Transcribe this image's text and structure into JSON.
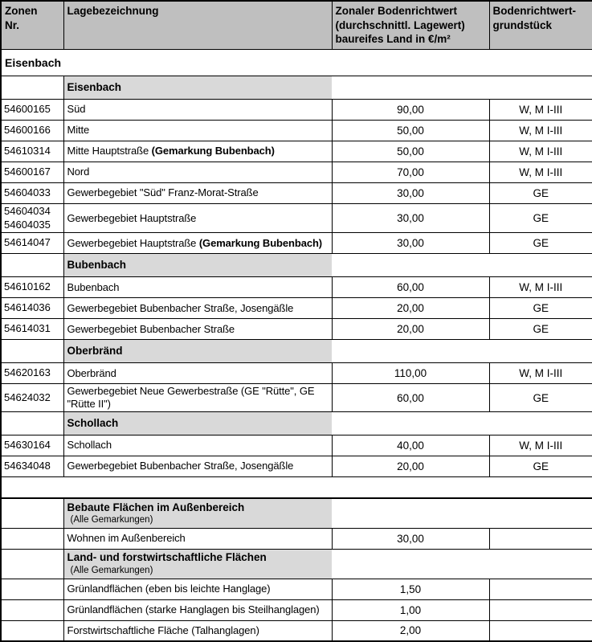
{
  "colors": {
    "header_bg": "#bfbfbf",
    "subheader_bg": "#d9d9d9",
    "border": "#000000",
    "text": "#000000"
  },
  "table": {
    "columns": [
      "Zonen\nNr.",
      "Lagebezeichnung",
      "Zonaler Bodenrichtwert\n(durchschnittl. Lagewert)\nbaureifes Land in €/m²",
      "Bodenrichtwert-\ngrundstück"
    ],
    "rows": [
      {
        "type": "section",
        "label": "Eisenbach"
      },
      {
        "type": "subheader",
        "label": "Eisenbach"
      },
      {
        "type": "data",
        "zone": [
          "54600165"
        ],
        "label": "Süd",
        "value": "90,00",
        "usage": "W, M I-III"
      },
      {
        "type": "data",
        "zone": [
          "54600166"
        ],
        "label": "Mitte",
        "value": "50,00",
        "usage": "W, M I-III"
      },
      {
        "type": "data",
        "zone": [
          "54610314"
        ],
        "label": "Mitte Hauptstraße ",
        "label_bold": "(Gemarkung Bubenbach)",
        "value": "50,00",
        "usage": "W, M I-III"
      },
      {
        "type": "data",
        "zone": [
          "54600167"
        ],
        "label": "Nord",
        "value": "70,00",
        "usage": "W, M I-III"
      },
      {
        "type": "data",
        "zone": [
          "54604033"
        ],
        "label": "Gewerbegebiet \"Süd\" Franz-Morat-Straße",
        "value": "30,00",
        "usage": "GE"
      },
      {
        "type": "data",
        "zone": [
          "54604034",
          "54604035"
        ],
        "label": "Gewerbegebiet Hauptstraße",
        "value": "30,00",
        "usage": "GE"
      },
      {
        "type": "data",
        "zone": [
          "54614047"
        ],
        "label": "Gewerbegebiet Hauptstraße ",
        "label_bold": "(Gemarkung Bubenbach)",
        "value": "30,00",
        "usage": "GE"
      },
      {
        "type": "subheader",
        "label": "Bubenbach"
      },
      {
        "type": "data",
        "zone": [
          "54610162"
        ],
        "label": "Bubenbach",
        "value": "60,00",
        "usage": "W, M I-III"
      },
      {
        "type": "data",
        "zone": [
          "54614036"
        ],
        "label": "Gewerbegebiet Bubenbacher Straße, Josengäßle",
        "value": "20,00",
        "usage": "GE"
      },
      {
        "type": "data",
        "zone": [
          "54614031"
        ],
        "label": "Gewerbegebiet Bubenbacher Straße",
        "value": "20,00",
        "usage": "GE"
      },
      {
        "type": "subheader",
        "label": "Oberbränd"
      },
      {
        "type": "data",
        "zone": [
          "54620163"
        ],
        "label": "Oberbränd",
        "value": "110,00",
        "usage": "W, M I-III"
      },
      {
        "type": "data",
        "zone": [
          "54624032"
        ],
        "label": "Gewerbegebiet Neue Gewerbestraße (GE \"Rütte\", GE \"Rütte II\")",
        "value": "60,00",
        "usage": "GE"
      },
      {
        "type": "subheader",
        "label": "Schollach"
      },
      {
        "type": "data",
        "zone": [
          "54630164"
        ],
        "label": "Schollach",
        "value": "40,00",
        "usage": "W, M I-III"
      },
      {
        "type": "data",
        "zone": [
          "54634048"
        ],
        "label": "Gewerbegebiet Bubenbacher Straße, Josengäßle",
        "value": "20,00",
        "usage": "GE"
      },
      {
        "type": "blank"
      },
      {
        "type": "subheader",
        "label": "Bebaute Flächen im Außenbereich",
        "sublabel": "(Alle Gemarkungen)"
      },
      {
        "type": "data",
        "zone": [],
        "label": "Wohnen im Außenbereich",
        "value": "30,00",
        "usage": ""
      },
      {
        "type": "subheader",
        "label": "Land- und forstwirtschaftliche Flächen",
        "sublabel": "(Alle Gemarkungen)"
      },
      {
        "type": "data",
        "zone": [],
        "label": "Grünlandflächen (eben bis leichte Hanglage)",
        "value": "1,50",
        "usage": ""
      },
      {
        "type": "data",
        "zone": [],
        "label": "Grünlandflächen (starke Hanglagen bis Steilhanglagen)",
        "value": "1,00",
        "usage": ""
      },
      {
        "type": "data",
        "zone": [],
        "label": "Forstwirtschaftliche Fläche (Talhanglagen)",
        "value": "2,00",
        "usage": ""
      }
    ]
  }
}
